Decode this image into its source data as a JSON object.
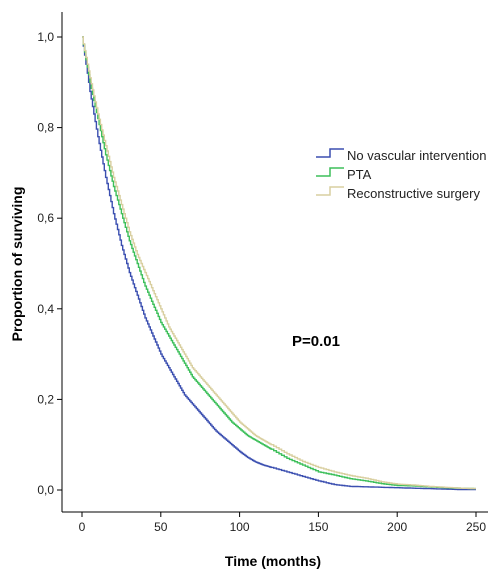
{
  "chart_data": {
    "type": "line",
    "title": "",
    "xlabel": "Time (months)",
    "ylabel": "Proportion of surviving",
    "xlim": [
      0,
      250
    ],
    "ylim": [
      0,
      1
    ],
    "x_ticks": [
      0,
      50,
      100,
      150,
      200,
      250
    ],
    "y_ticks": [
      0.0,
      0.2,
      0.4,
      0.6,
      0.8,
      1.0
    ],
    "x_tick_labels": [
      "0",
      "50",
      "100",
      "150",
      "200",
      "250"
    ],
    "y_tick_labels": [
      "0,0",
      "0,2",
      "0,4",
      "0,6",
      "0,8",
      "1,0"
    ],
    "grid": false,
    "legend_position": "right",
    "annotation": "P=0.01",
    "series": [
      {
        "name": "No vascular intervention",
        "color": "#3b4fb0",
        "x": [
          0,
          5,
          10,
          15,
          20,
          25,
          30,
          35,
          40,
          45,
          50,
          55,
          60,
          65,
          70,
          75,
          80,
          85,
          90,
          95,
          100,
          105,
          110,
          115,
          120,
          130,
          140,
          150,
          160,
          170,
          180,
          190,
          200,
          210,
          220,
          230,
          240,
          250
        ],
        "y": [
          1.0,
          0.88,
          0.78,
          0.69,
          0.61,
          0.54,
          0.48,
          0.43,
          0.38,
          0.34,
          0.3,
          0.27,
          0.24,
          0.21,
          0.19,
          0.17,
          0.15,
          0.13,
          0.115,
          0.1,
          0.085,
          0.072,
          0.062,
          0.055,
          0.05,
          0.04,
          0.03,
          0.02,
          0.012,
          0.008,
          0.007,
          0.006,
          0.005,
          0.004,
          0.003,
          0.002,
          0.001,
          0.001
        ]
      },
      {
        "name": "PTA",
        "color": "#3dbf5a",
        "x": [
          0,
          5,
          10,
          15,
          20,
          25,
          30,
          35,
          40,
          45,
          50,
          55,
          60,
          65,
          70,
          75,
          80,
          85,
          90,
          95,
          100,
          105,
          110,
          115,
          120,
          130,
          140,
          150,
          160,
          170,
          180,
          190,
          200,
          210,
          220,
          230,
          240,
          250
        ],
        "y": [
          1.0,
          0.9,
          0.82,
          0.74,
          0.67,
          0.61,
          0.55,
          0.5,
          0.45,
          0.41,
          0.37,
          0.34,
          0.31,
          0.28,
          0.25,
          0.23,
          0.21,
          0.19,
          0.17,
          0.15,
          0.135,
          0.12,
          0.11,
          0.1,
          0.09,
          0.07,
          0.055,
          0.04,
          0.033,
          0.025,
          0.02,
          0.014,
          0.01,
          0.009,
          0.007,
          0.005,
          0.004,
          0.003
        ]
      },
      {
        "name": "Reconstructive surgery",
        "color": "#d9cfa0",
        "x": [
          0,
          5,
          10,
          15,
          20,
          25,
          30,
          35,
          40,
          45,
          50,
          55,
          60,
          65,
          70,
          75,
          80,
          85,
          90,
          95,
          100,
          105,
          110,
          115,
          120,
          130,
          140,
          150,
          160,
          170,
          180,
          190,
          200,
          210,
          220,
          230,
          240,
          250
        ],
        "y": [
          1.0,
          0.91,
          0.83,
          0.76,
          0.69,
          0.63,
          0.57,
          0.52,
          0.48,
          0.44,
          0.4,
          0.36,
          0.33,
          0.3,
          0.27,
          0.25,
          0.23,
          0.21,
          0.19,
          0.17,
          0.15,
          0.135,
          0.12,
          0.11,
          0.1,
          0.08,
          0.063,
          0.05,
          0.04,
          0.032,
          0.026,
          0.018,
          0.013,
          0.011,
          0.008,
          0.006,
          0.004,
          0.003
        ]
      }
    ]
  }
}
